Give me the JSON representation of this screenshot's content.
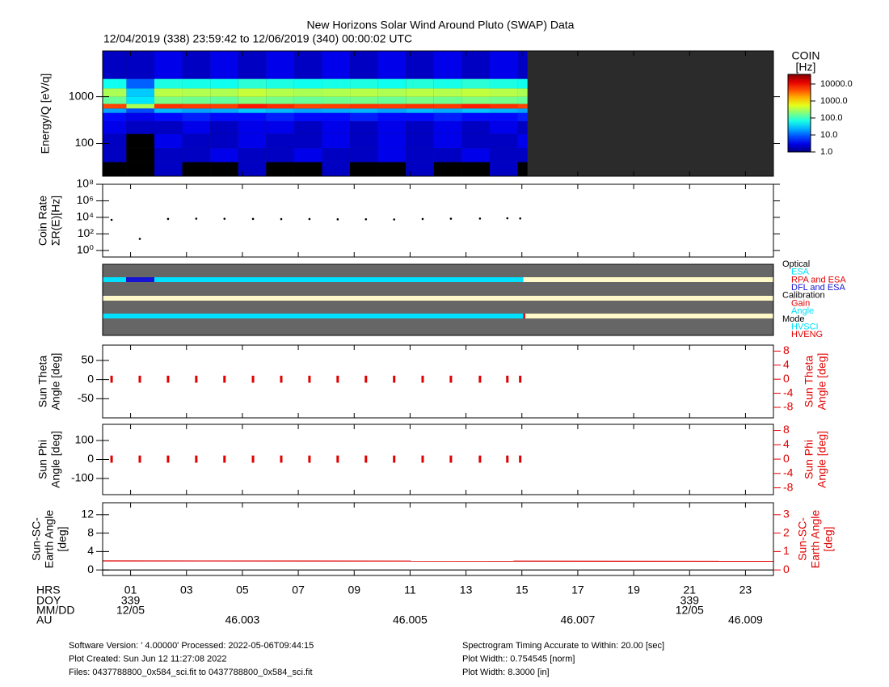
{
  "title": "New Horizons Solar Wind Around Pluto (SWAP) Data",
  "subtitle": "12/04/2019 (338) 23:59:42 to 12/06/2019 (340) 00:00:02 UTC",
  "time_axis": {
    "xlim": [
      0,
      24
    ],
    "rows": [
      {
        "label": "HRS",
        "ticks": [
          {
            "value": 1,
            "label": "01"
          },
          {
            "value": 3,
            "label": "03"
          },
          {
            "value": 5,
            "label": "05"
          },
          {
            "value": 7,
            "label": "07"
          },
          {
            "value": 9,
            "label": "09"
          },
          {
            "value": 11,
            "label": "11"
          },
          {
            "value": 13,
            "label": "13"
          },
          {
            "value": 15,
            "label": "15"
          },
          {
            "value": 17,
            "label": "17"
          },
          {
            "value": 19,
            "label": "19"
          },
          {
            "value": 21,
            "label": "21"
          },
          {
            "value": 23,
            "label": "23"
          }
        ]
      },
      {
        "label": "DOY",
        "ticks": [
          {
            "value": 1,
            "label": "339"
          },
          {
            "value": 21,
            "label": "339"
          }
        ]
      },
      {
        "label": "MM/DD",
        "ticks": [
          {
            "value": 1,
            "label": "12/05"
          },
          {
            "value": 21,
            "label": "12/05"
          }
        ]
      },
      {
        "label": "AU",
        "ticks": [
          {
            "value": 5,
            "label": "46.003"
          },
          {
            "value": 11,
            "label": "46.005"
          },
          {
            "value": 17,
            "label": "46.007"
          },
          {
            "value": 23,
            "label": "46.009"
          }
        ]
      }
    ]
  },
  "chart_data": [
    {
      "type": "heatmap",
      "ylabel": [
        "Energy/Q [eV/q]"
      ],
      "log": true,
      "ylim": [
        20,
        9500
      ],
      "yticks": [
        100,
        1000
      ],
      "nodata_color": "#2b2b2b",
      "x_edges": [
        0,
        0.85,
        1.85,
        2.85,
        3.85,
        4.85,
        5.85,
        6.85,
        7.85,
        8.85,
        9.85,
        10.85,
        11.85,
        12.85,
        13.85,
        14.85,
        15.2
      ],
      "y_edges": [
        20,
        40,
        80,
        160,
        300,
        450,
        560,
        700,
        1000,
        1500,
        2400,
        9500
      ],
      "values": [
        [
          0,
          2,
          2,
          3,
          4,
          20,
          5000,
          150,
          300,
          60,
          2
        ],
        [
          0,
          0,
          0,
          2,
          3,
          8,
          300,
          40,
          30,
          10,
          2
        ],
        [
          2,
          2,
          3,
          2,
          4,
          25,
          6000,
          180,
          350,
          70,
          3
        ],
        [
          0,
          2,
          2,
          3,
          5,
          20,
          5500,
          160,
          320,
          65,
          2
        ],
        [
          0,
          3,
          2,
          2,
          4,
          22,
          5200,
          140,
          310,
          60,
          3
        ],
        [
          2,
          2,
          3,
          3,
          4,
          30,
          8000,
          200,
          400,
          80,
          2
        ],
        [
          0,
          2,
          2,
          3,
          5,
          25,
          6500,
          170,
          330,
          70,
          3
        ],
        [
          0,
          3,
          2,
          2,
          4,
          20,
          5000,
          150,
          300,
          60,
          2
        ],
        [
          2,
          2,
          3,
          3,
          4,
          22,
          5200,
          160,
          320,
          65,
          3
        ],
        [
          0,
          2,
          2,
          2,
          5,
          24,
          5800,
          170,
          340,
          70,
          2
        ],
        [
          0,
          3,
          3,
          3,
          4,
          20,
          5400,
          150,
          310,
          60,
          3
        ],
        [
          2,
          2,
          2,
          2,
          4,
          26,
          6000,
          180,
          350,
          75,
          2
        ],
        [
          0,
          2,
          3,
          3,
          5,
          22,
          5600,
          160,
          330,
          65,
          3
        ],
        [
          0,
          3,
          2,
          2,
          4,
          28,
          7500,
          190,
          380,
          80,
          2
        ],
        [
          2,
          2,
          2,
          3,
          4,
          24,
          6200,
          170,
          340,
          70,
          3
        ],
        [
          0,
          2,
          3,
          2,
          5,
          20,
          5000,
          150,
          300,
          60,
          2
        ]
      ],
      "colorbar": {
        "title": "COIN",
        "unit": "[Hz]",
        "clim": [
          1,
          37000
        ],
        "ticks": [
          {
            "value": 1,
            "label": "1.0"
          },
          {
            "value": 10,
            "label": "10.0"
          },
          {
            "value": 100,
            "label": "100.0"
          },
          {
            "value": 1000,
            "label": "1000.0"
          },
          {
            "value": 10000,
            "label": "10000.0"
          }
        ]
      }
    },
    {
      "type": "scatter",
      "ylabel": [
        "Coin Rate",
        "ΣR(E)[Hz]"
      ],
      "log": true,
      "ylim": [
        0.16,
        100000000
      ],
      "yticks": [
        {
          "value": 1,
          "label": "10⁰"
        },
        {
          "value": 100,
          "label": "10²"
        },
        {
          "value": 10000,
          "label": "10⁴"
        },
        {
          "value": 1000000,
          "label": "10⁶"
        },
        {
          "value": 100000000,
          "label": "10⁸"
        }
      ],
      "x": [
        0.32,
        1.33,
        2.34,
        3.35,
        4.36,
        5.38,
        6.39,
        7.4,
        8.41,
        9.42,
        10.43,
        11.45,
        12.46,
        13.5,
        14.48,
        14.94
      ],
      "values": [
        5000,
        25,
        6500,
        7000,
        6800,
        6500,
        6200,
        6300,
        5800,
        5900,
        5600,
        6400,
        6900,
        7200,
        7800,
        7400
      ],
      "color": "#000000"
    },
    {
      "type": "timeline",
      "background": "#666666",
      "rows": [
        [
          {
            "start": 0,
            "end": 0.84,
            "color": "#00e0ff"
          },
          {
            "start": 0.84,
            "end": 1.85,
            "color": "#1414d2"
          },
          {
            "start": 1.85,
            "end": 15.05,
            "color": "#00e0ff"
          },
          {
            "start": 15.05,
            "end": 24,
            "color": "#fff8c8"
          }
        ],
        [
          {
            "start": 0,
            "end": 24,
            "color": "#fff8c8"
          }
        ],
        [
          {
            "start": 0,
            "end": 15.05,
            "color": "#00e0ff"
          },
          {
            "start": 15.05,
            "end": 15.12,
            "color": "#e00000"
          },
          {
            "start": 15.12,
            "end": 24,
            "color": "#fff8c8"
          }
        ]
      ],
      "legend": [
        {
          "label": "Optical"
        },
        {
          "label": "ESA",
          "color": "#00e0ff"
        },
        {
          "label": "RPA and ESA",
          "color": "#e00000"
        },
        {
          "label": "DFL and ESA",
          "color": "#1414d2"
        },
        {
          "label": "Calibration"
        },
        {
          "label": "Gain",
          "color": "#e00000"
        },
        {
          "label": "Angle",
          "color": "#00e0ff"
        },
        {
          "label": "Mode"
        },
        {
          "label": "HVSCI",
          "color": "#00e0ff"
        },
        {
          "label": "HVENG",
          "color": "#e00000"
        }
      ]
    },
    {
      "type": "range",
      "ylabel": [
        "Sun Theta",
        "Angle [deg]"
      ],
      "y2label": [
        "Sun Theta",
        "Angle [deg]"
      ],
      "y2color": "#e00000",
      "ylim": [
        -100,
        90
      ],
      "yticks": [
        -50,
        0,
        50
      ],
      "y2lim": [
        -11,
        9.7
      ],
      "y2ticks": [
        -8,
        -4,
        0,
        4,
        8
      ],
      "x": [
        0.32,
        1.33,
        2.34,
        3.35,
        4.36,
        5.38,
        6.39,
        7.4,
        8.41,
        9.42,
        10.43,
        11.45,
        12.46,
        13.5,
        14.48,
        14.94
      ],
      "low": [
        -1,
        -1,
        -1,
        -1,
        -1,
        -1,
        -1,
        -1,
        -1,
        -1,
        -1,
        -1,
        -1,
        -1,
        -1,
        -1
      ],
      "high": [
        1,
        1,
        1,
        1,
        1,
        1,
        1,
        1,
        1,
        1,
        1,
        1,
        1,
        1,
        1,
        1
      ],
      "color": "#e00000"
    },
    {
      "type": "range",
      "ylabel": [
        "Sun Phi",
        "Angle [deg]"
      ],
      "y2label": [
        "Sun Phi",
        "Angle [deg]"
      ],
      "y2color": "#e00000",
      "ylim": [
        -185,
        185
      ],
      "yticks": [
        -100,
        0,
        100
      ],
      "y2lim": [
        -9.9,
        9.7
      ],
      "y2ticks": [
        -8,
        -4,
        0,
        4,
        8
      ],
      "x": [
        0.32,
        1.33,
        2.34,
        3.35,
        4.36,
        5.38,
        6.39,
        7.4,
        8.41,
        9.42,
        10.43,
        11.45,
        12.46,
        13.5,
        14.48,
        14.94
      ],
      "low": [
        -1,
        -1,
        -1,
        -1,
        -1,
        -1,
        -1,
        -1,
        -1,
        -1,
        -1,
        -1,
        -1,
        -1,
        -1,
        -1
      ],
      "high": [
        1,
        1,
        1,
        1,
        1,
        1,
        1,
        1,
        1,
        1,
        1,
        1,
        1,
        1,
        1,
        1
      ],
      "color": "#e00000"
    },
    {
      "type": "line",
      "ylabel": [
        "Sun-SC-",
        "Earth Angle",
        "[deg]"
      ],
      "y2label": [
        "Sun-SC-",
        "Earth Angle",
        "[deg]"
      ],
      "y2color": "#e00000",
      "ylim": [
        -1.2,
        14.6
      ],
      "yticks": [
        0,
        4,
        8,
        12
      ],
      "y2lim": [
        -0.3,
        3.65
      ],
      "y2ticks": [
        0,
        1,
        2,
        3
      ],
      "series": [
        {
          "color": "#e00000",
          "axis": "y2",
          "x": [
            0,
            24
          ],
          "values": [
            0.49,
            0.47
          ]
        },
        {
          "color": "#000000",
          "x": [
            0,
            24
          ],
          "values": [
            0,
            0
          ]
        }
      ]
    }
  ],
  "footer": {
    "left": [
      "Software Version:  ' 4.00000'  Processed: 2022-05-06T09:44:15",
      "Plot Created: Sun Jun 12 11:27:08 2022",
      "Files: 0437788800_0x584_sci.fit to 0437788800_0x584_sci.fit"
    ],
    "right": [
      "Spectrogram Timing Accurate to Within: 20.00 [sec]",
      "Plot Width:: 0.754545 [norm]",
      "Plot Width: 8.3000 [in]"
    ]
  }
}
